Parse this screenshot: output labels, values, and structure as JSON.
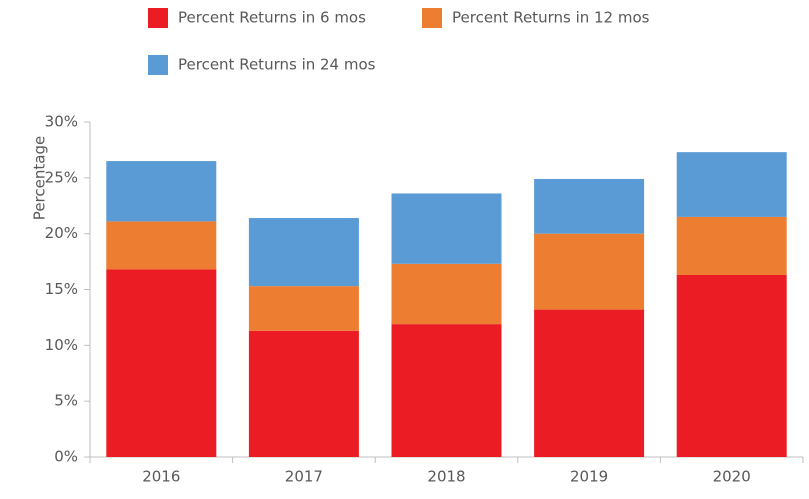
{
  "chart_data": {
    "type": "stacked_bar",
    "y_label": "Percentage",
    "categories": [
      "2016",
      "2017",
      "2018",
      "2019",
      "2020"
    ],
    "series": [
      {
        "name": "Percent Returns in 6 mos",
        "color": "#ec1c24",
        "values": [
          16.8,
          11.3,
          11.9,
          13.2,
          16.3
        ]
      },
      {
        "name": "Percent Returns in 12 mos",
        "color": "#ed7d31",
        "values": [
          4.3,
          4.0,
          5.4,
          6.8,
          5.2
        ]
      },
      {
        "name": "Percent Returns in 24 mos",
        "color": "#5b9bd5",
        "values": [
          5.4,
          6.1,
          6.3,
          4.9,
          5.8
        ]
      }
    ],
    "ylim": [
      0,
      30
    ],
    "yticks": [
      {
        "value": 0,
        "label": "0%"
      },
      {
        "value": 5,
        "label": "5%"
      },
      {
        "value": 10,
        "label": "10%"
      },
      {
        "value": 15,
        "label": "15%"
      },
      {
        "value": 20,
        "label": "20%"
      },
      {
        "value": 25,
        "label": "25%"
      },
      {
        "value": 30,
        "label": "30%"
      }
    ],
    "grid": false
  }
}
